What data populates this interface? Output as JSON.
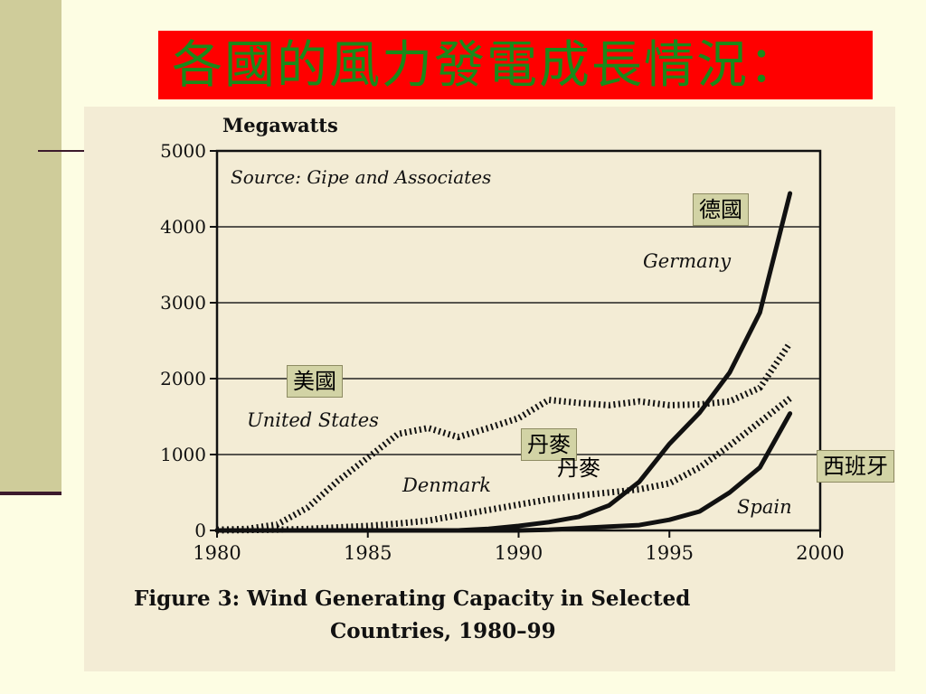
{
  "slide": {
    "title": "各國的風力發電成長情況：",
    "title_color": "#1a8a1a",
    "title_bg": "#ff0000",
    "background": "#fdfde3",
    "accent": "#cfcc9a"
  },
  "annotations": {
    "germany": "德國",
    "usa": "美國",
    "denmark": "丹麥",
    "denmark_duplicate": "丹麥",
    "spain": "西班牙"
  },
  "chart_data": {
    "type": "line",
    "ylabel": "Megawatts",
    "source": "Source: Gipe and Associates",
    "caption_line1": "Figure 3: Wind Generating Capacity in Selected",
    "caption_line2": "Countries, 1980–99",
    "xlim": [
      1980,
      2000
    ],
    "ylim": [
      0,
      5000
    ],
    "xticks": [
      1980,
      1985,
      1990,
      1995,
      2000
    ],
    "yticks": [
      0,
      1000,
      2000,
      3000,
      4000,
      5000
    ],
    "grid": true,
    "x": [
      1980,
      1981,
      1982,
      1983,
      1984,
      1985,
      1986,
      1987,
      1988,
      1989,
      1990,
      1991,
      1992,
      1993,
      1994,
      1995,
      1996,
      1997,
      1998,
      1999
    ],
    "series": [
      {
        "name": "Germany",
        "style": "solid",
        "values": [
          0,
          0,
          0,
          0,
          0,
          0,
          0,
          0,
          0,
          20,
          60,
          110,
          180,
          330,
          640,
          1140,
          1550,
          2080,
          2870,
          4440
        ]
      },
      {
        "name": "United States",
        "style": "dotted",
        "values": [
          10,
          20,
          80,
          300,
          650,
          960,
          1270,
          1350,
          1230,
          1350,
          1480,
          1720,
          1680,
          1650,
          1700,
          1650,
          1660,
          1700,
          1880,
          2470
        ]
      },
      {
        "name": "Denmark",
        "style": "dotted",
        "values": [
          0,
          5,
          10,
          20,
          40,
          60,
          90,
          130,
          200,
          270,
          340,
          410,
          460,
          500,
          540,
          620,
          830,
          1120,
          1430,
          1740
        ]
      },
      {
        "name": "Spain",
        "style": "solid",
        "values": [
          0,
          0,
          0,
          0,
          0,
          0,
          0,
          0,
          0,
          0,
          0,
          10,
          30,
          50,
          70,
          140,
          250,
          500,
          830,
          1540
        ]
      }
    ]
  }
}
